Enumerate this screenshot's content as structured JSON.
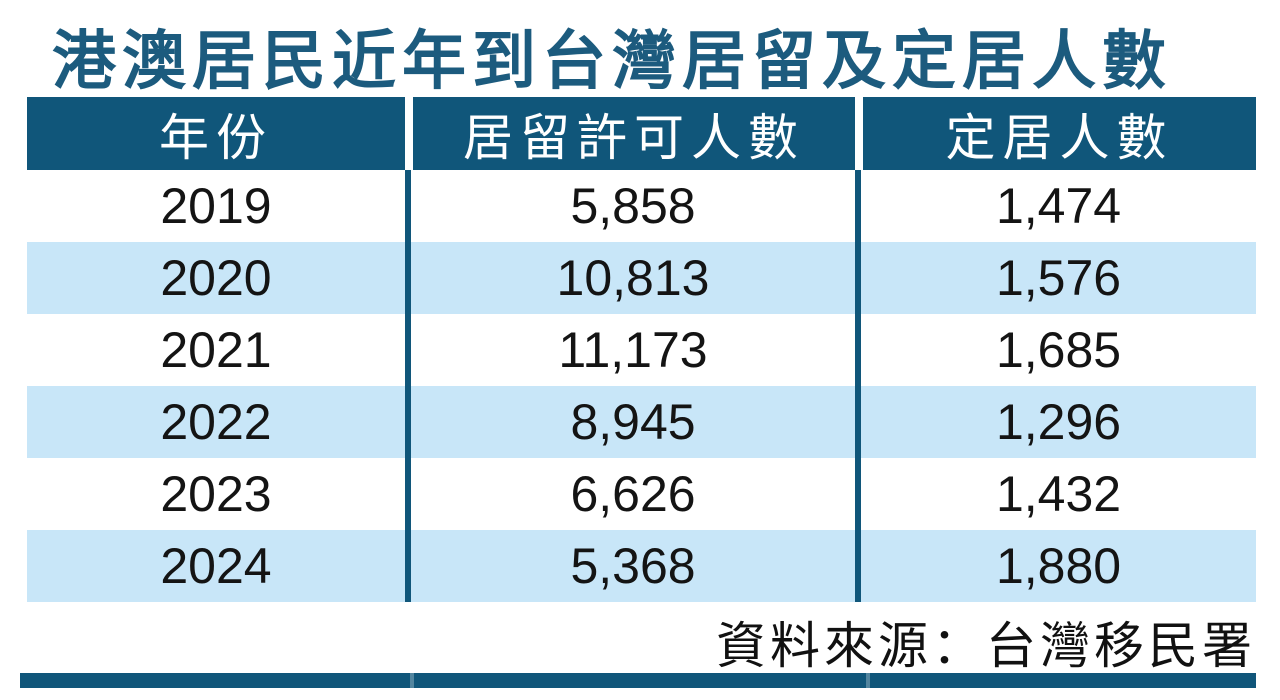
{
  "title": "港澳居民近年到台灣居留及定居人數",
  "source": "資料來源：台灣移民署",
  "colors": {
    "accent": "#10567a",
    "title": "#1c5b7e",
    "stripe": "#c8e6f8",
    "headertext": "#ffffff",
    "bodytext": "#141414"
  },
  "chart_data": {
    "type": "table",
    "title": "港澳居民近年到台灣居留及定居人數",
    "columns": [
      "年份",
      "居留許可人數",
      "定居人數"
    ],
    "rows": [
      [
        "2019",
        "5,858",
        "1,474"
      ],
      [
        "2020",
        "10,813",
        "1,576"
      ],
      [
        "2021",
        "11,173",
        "1,685"
      ],
      [
        "2022",
        "8,945",
        "1,296"
      ],
      [
        "2023",
        "6,626",
        "1,432"
      ],
      [
        "2024",
        "5,368",
        "1,880"
      ]
    ],
    "source_note": "資料來源：台灣移民署",
    "layout": {
      "stripe_rows": "even data rows (2020, 2022, 2024)",
      "legend_position": "none",
      "grid": "vertical column dividers only"
    }
  }
}
